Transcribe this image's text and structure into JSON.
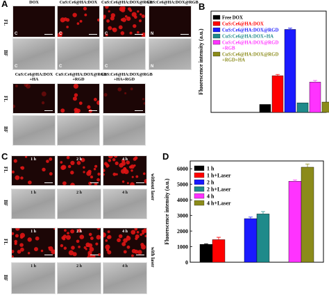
{
  "panel_labels": {
    "a": "A",
    "b": "B",
    "c": "C",
    "d": "D"
  },
  "panel_a": {
    "top_columns": [
      "DOX",
      "CuS:Ce6@HA:DOX",
      "CuS:Ce6@HA:DOX@RGB",
      "CuS:Ce6@HA:DOX@RGB"
    ],
    "bottom_columns": [
      "CuS:Ce6@HA:DOX\n+HA",
      "CuS:Ce6@HA:DOX@RGB\n+RGD",
      "CuS:Ce6@HA:DOX@RGB\n+HA+RGD"
    ],
    "rows": [
      "FL",
      "BF"
    ],
    "tile_tags": [
      "C",
      "C",
      "C",
      "N"
    ]
  },
  "panel_c": {
    "columns": [
      "1 h",
      "2 h",
      "4 h"
    ],
    "rows": [
      "FL",
      "BF",
      "FL",
      "BF"
    ],
    "side_labels": [
      "without laser",
      "with laser"
    ]
  },
  "colors": {
    "black": "#000000",
    "red": "#ff0000",
    "blue": "#1a1aff",
    "teal": "#1f8a8a",
    "magenta": "#ff33ff",
    "olive": "#8b8b1a"
  },
  "chart_data": [
    {
      "type": "bar",
      "panel": "B",
      "title": "",
      "xlabel": "",
      "ylabel": "Fluorescence intensity (a.u.)",
      "yticks_labeled": false,
      "legend_position": "top-left",
      "series": [
        {
          "name": "Free DOX",
          "value": 500,
          "error": 0,
          "color": "#000000"
        },
        {
          "name": "CuS:Ce6@HA:DOX",
          "value": 2300,
          "error": 80,
          "color": "#ff0000"
        },
        {
          "name": "CuS:Ce6@HA:DOX@RGD",
          "value": 5200,
          "error": 80,
          "color": "#1a1aff"
        },
        {
          "name": "CuS:Ce6@HA:DOX+HA",
          "value": 600,
          "error": 0,
          "color": "#1f8a8a"
        },
        {
          "name": "CuS:Ce6@HA:DOX@RGD\n+RGB",
          "value": 1900,
          "error": 100,
          "color": "#ff33ff"
        },
        {
          "name": "CuS:Ce6@HA:DOX@RGD\n+RGD+HA",
          "value": 650,
          "error": 0,
          "color": "#8b8b1a"
        }
      ],
      "ylim": [
        0,
        6000
      ]
    },
    {
      "type": "bar",
      "panel": "D",
      "title": "",
      "xlabel": "",
      "ylabel": "Fluorescence intensity (a.u.)",
      "ylim": [
        0,
        6500
      ],
      "yticks": [
        0,
        1000,
        2000,
        3000,
        4000,
        5000,
        6000
      ],
      "legend_position": "top-left",
      "series": [
        {
          "name": "1 h",
          "value": 1150,
          "error": 40,
          "color": "#000000"
        },
        {
          "name": "1 h+Laser",
          "value": 1450,
          "error": 150,
          "color": "#ff0000"
        },
        {
          "name": "2 h",
          "value": 2800,
          "error": 100,
          "color": "#1a1aff"
        },
        {
          "name": "2 h+Laser",
          "value": 3100,
          "error": 150,
          "color": "#1f8a8a"
        },
        {
          "name": "4 h",
          "value": 5200,
          "error": 80,
          "color": "#ff33ff"
        },
        {
          "name": "4 h+Laser",
          "value": 6100,
          "error": 200,
          "color": "#8b8b1a"
        }
      ]
    }
  ]
}
